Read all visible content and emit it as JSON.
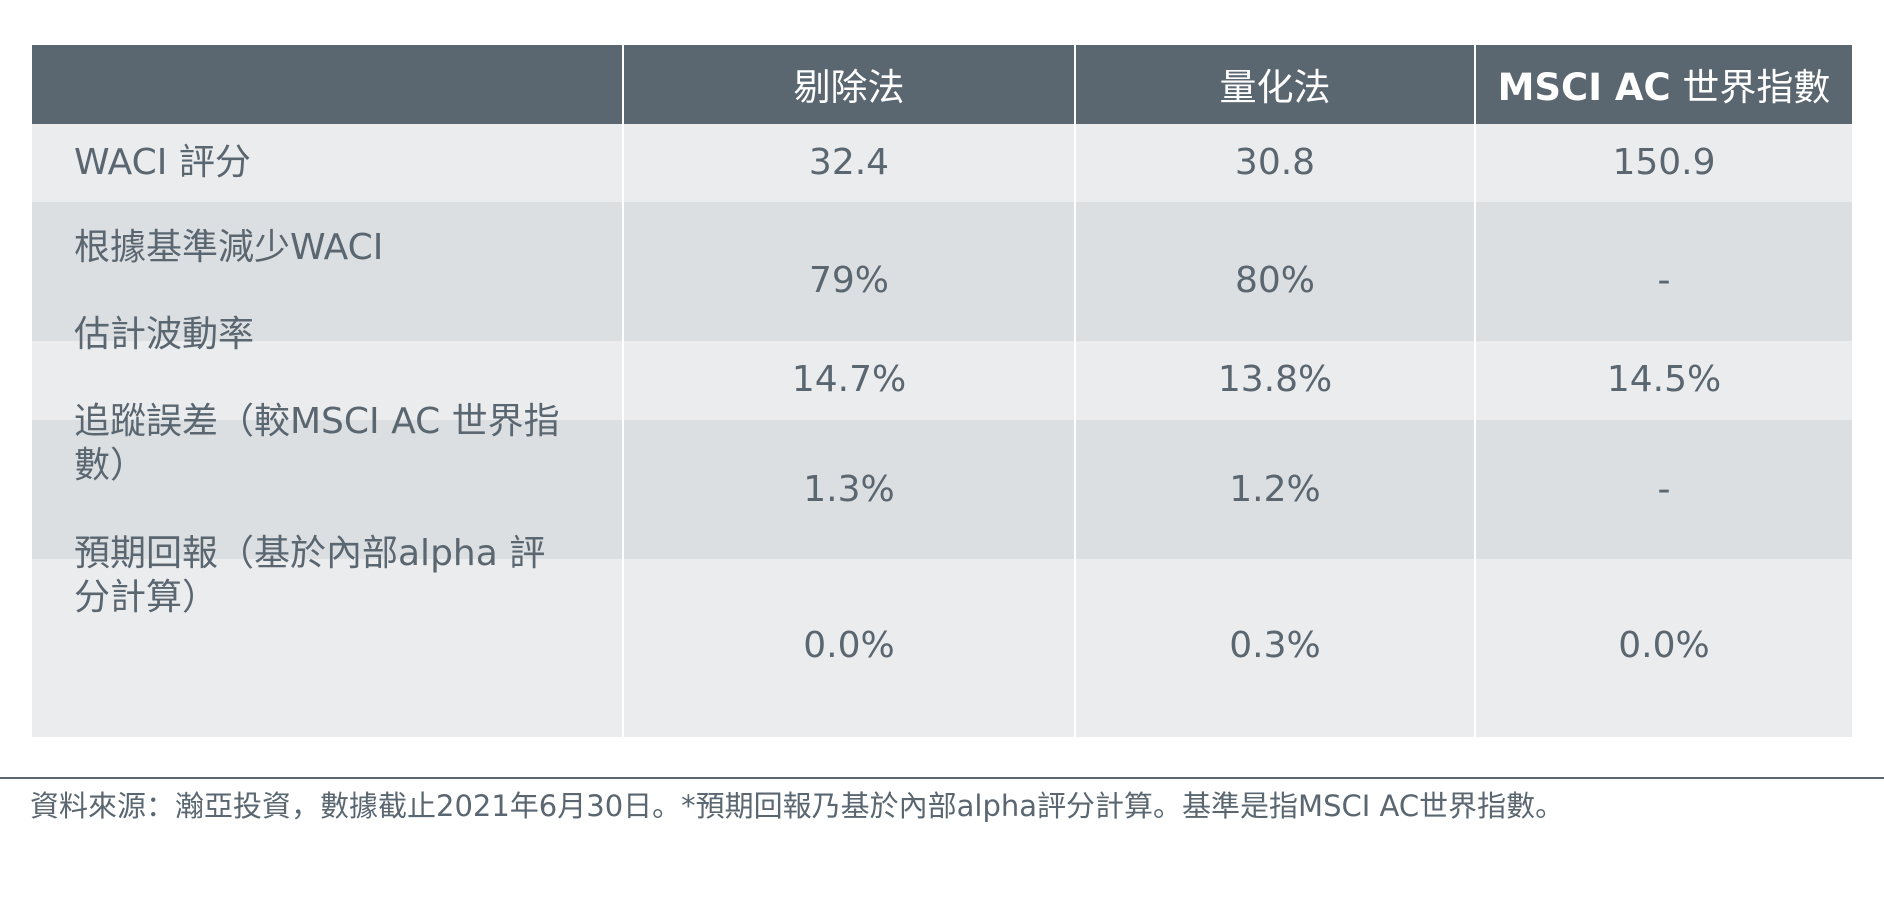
{
  "table": {
    "headers": [
      "",
      "剔除法",
      "量化法",
      "MSCI AC 世界指數"
    ],
    "header_last_bold": "MSCI AC",
    "header_last_rest": " 世界指數",
    "rows": [
      {
        "label": "WACI 評分",
        "values": [
          "32.4",
          "30.8",
          "150.9"
        ]
      },
      {
        "label": "根據基準減少WACI",
        "values": [
          "79%",
          "80%",
          "-"
        ]
      },
      {
        "label": "估計波動率",
        "values": [
          "14.7%",
          "13.8%",
          "14.5%"
        ]
      },
      {
        "label": "追蹤誤差（較MSCI AC 世界指數）",
        "values": [
          "1.3%",
          "1.2%",
          "-"
        ]
      },
      {
        "label": "預期回報（基於內部alpha 評分計算）",
        "values": [
          "0.0%",
          "0.3%",
          "0.0%"
        ]
      }
    ]
  },
  "footer": {
    "note": "資料來源：瀚亞投資，數據截止2021年6月30日。*預期回報乃基於內部alpha評分計算。基準是指MSCI AC世界指數。"
  },
  "colors": {
    "header_bg": "#5b6770",
    "row_light": "#ebecee",
    "row_dark": "#dcdfe2",
    "text": "#5a6670"
  }
}
